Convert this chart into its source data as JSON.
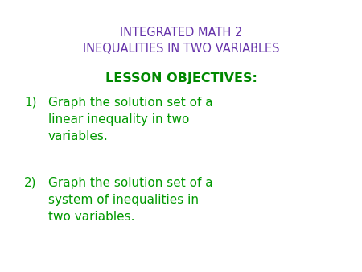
{
  "background_color": "#ffffff",
  "title_line1": "INTEGRATED MATH 2",
  "title_line2": "INEQUALITIES IN TWO VARIABLES",
  "title_color": "#6633aa",
  "title_fontsize": 10.5,
  "objectives_label": "LESSON OBJECTIVES:",
  "objectives_color": "#008800",
  "objectives_fontsize": 11.5,
  "item1_number": "1)",
  "item1_text": "Graph the solution set of a\nlinear inequality in two\nvariables.",
  "item2_number": "2)",
  "item2_text": "Graph the solution set of a\nsystem of inequalities in\ntwo variables.",
  "items_color": "#009900",
  "items_fontsize": 11.0,
  "number_fontsize": 11.0
}
